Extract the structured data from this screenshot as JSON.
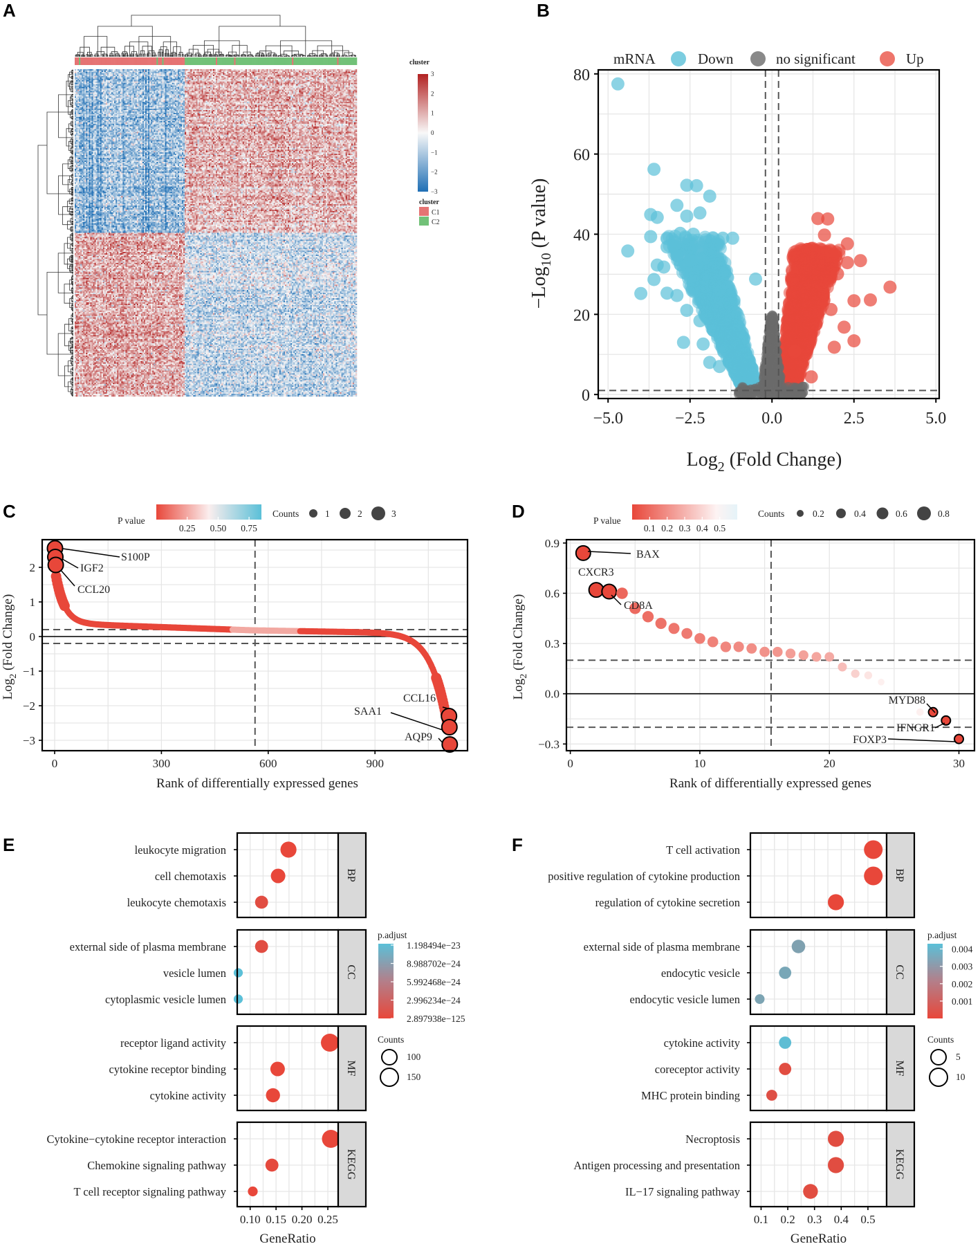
{
  "panels": {
    "A": {
      "label": "A"
    },
    "B": {
      "label": "B"
    },
    "C": {
      "label": "C"
    },
    "D": {
      "label": "D"
    },
    "E": {
      "label": "E"
    },
    "F": {
      "label": "F"
    }
  },
  "colors": {
    "down": "#5bc0d8",
    "up": "#e8473a",
    "ns": "#6b6b6b",
    "heat_low": "#2a74b9",
    "heat_mid": "#f8f8f8",
    "heat_high": "#c0392b",
    "cluster_c1": "#e57373",
    "cluster_c2": "#72c178",
    "pcolor_low": "#e8473a",
    "pcolor_high": "#5bc0d8"
  },
  "chart_data": [
    {
      "panel": "A",
      "type": "heatmap",
      "title": "",
      "annotation_title": "cluster",
      "color_scale": {
        "min": -3,
        "max": 3,
        "ticks": [
          "3",
          "2",
          "1",
          "0",
          "−1",
          "−2",
          "−3"
        ]
      },
      "legend": {
        "title": "cluster",
        "entries": [
          "C1",
          "C2"
        ]
      },
      "columns": {
        "count": 200,
        "c1_fraction": 0.39
      },
      "rows": {
        "count": 240,
        "up_in_c2_fraction": 0.5
      }
    },
    {
      "panel": "B",
      "type": "scatter",
      "title": "mRNA",
      "xlabel": "Log2 (Fold Change)",
      "ylabel": "−Log10 (P value)",
      "xlabel_main": "Log",
      "xlabel_sub": "2",
      "xlabel_rest": " (Fold Change)",
      "ylabel_main": "−Log",
      "ylabel_sub": "10",
      "ylabel_rest": " (P value)",
      "xlim": [
        -5.3,
        5.1
      ],
      "ylim": [
        -1,
        81
      ],
      "xticks": [
        "−5.0",
        "−2.5",
        "0.0",
        "2.5",
        "5.0"
      ],
      "xtick_values": [
        -5,
        -2.5,
        0,
        2.5,
        5
      ],
      "yticks": [
        "0",
        "20",
        "40",
        "60",
        "80"
      ],
      "ytick_values": [
        0,
        20,
        40,
        60,
        80
      ],
      "thresholds": {
        "logfc": [
          -0.2,
          0.2
        ],
        "neglog10p": 1
      },
      "legend": [
        "Down",
        "no significant",
        "Up"
      ],
      "series": [
        {
          "name": "Down",
          "points": [
            [
              -4.7,
              77.5
            ],
            [
              -3.6,
              56.2
            ],
            [
              -3.7,
              44.9
            ],
            [
              -3.5,
              44.2
            ],
            [
              -3.7,
              39.4
            ],
            [
              -4.4,
              35.8
            ],
            [
              -3.5,
              32.3
            ],
            [
              -3.3,
              31.8
            ],
            [
              -3.6,
              28.7
            ],
            [
              -3.2,
              25.3
            ],
            [
              -4.0,
              25.2
            ],
            [
              -2.6,
              52.2
            ],
            [
              -2.3,
              52.1
            ],
            [
              -1.9,
              49.5
            ],
            [
              -2.9,
              47.2
            ],
            [
              -2.2,
              45.3
            ],
            [
              -2.6,
              44.5
            ],
            [
              -2.8,
              40.2
            ],
            [
              -2.4,
              40.0
            ],
            [
              -1.5,
              39.0
            ],
            [
              -1.2,
              39.0
            ],
            [
              -3.0,
              37.1
            ],
            [
              -3.2,
              36.8
            ],
            [
              -2.5,
              33.4
            ],
            [
              -0.5,
              28.8
            ],
            [
              -2.9,
              24.7
            ],
            [
              -2.6,
              21.0
            ],
            [
              -2.2,
              18.4
            ],
            [
              -2.7,
              13.0
            ],
            [
              -2.1,
              12.6
            ],
            [
              -1.9,
              8.0
            ],
            [
              -1.6,
              7.0
            ]
          ]
        },
        {
          "name": "Up",
          "points": [
            [
              3.6,
              26.8
            ],
            [
              3.0,
              23.6
            ],
            [
              2.5,
              23.4
            ],
            [
              2.7,
              33.4
            ],
            [
              2.3,
              32.9
            ],
            [
              1.7,
              43.8
            ],
            [
              1.4,
              43.9
            ],
            [
              1.6,
              39.8
            ],
            [
              2.3,
              37.6
            ],
            [
              1.8,
              35.8
            ],
            [
              2.0,
              30.1
            ],
            [
              2.5,
              13.4
            ],
            [
              2.2,
              16.8
            ],
            [
              1.8,
              21.2
            ],
            [
              1.2,
              4.4
            ],
            [
              0.7,
              10.8
            ],
            [
              1.9,
              11.8
            ]
          ]
        }
      ]
    },
    {
      "panel": "C",
      "type": "scatter",
      "xlabel": "Rank of differentially expressed genes",
      "ylabel": "Log2 (Fold Change)",
      "ylabel_main": "Log",
      "ylabel_sub": "2",
      "ylabel_rest": " (Fold Change)",
      "xlim": [
        -35,
        1160
      ],
      "ylim": [
        -3.3,
        2.8
      ],
      "xticks": [
        "0",
        "300",
        "600",
        "900"
      ],
      "xtick_values": [
        0,
        300,
        600,
        900
      ],
      "yticks": [
        "2",
        "1",
        "0",
        "−1",
        "−2",
        "−3"
      ],
      "ytick_values": [
        2,
        1,
        0,
        -1,
        -2,
        -3
      ],
      "vline": 563,
      "hlines_dashed": [
        0.2,
        -0.2
      ],
      "hline_solid": 0,
      "n_genes": 1110,
      "legend": {
        "pvalue_title": "P value",
        "pvalue_ticks": [
          "0.25",
          "0.50",
          "0.75"
        ],
        "pvalue_tick_values": [
          0.25,
          0.5,
          0.75
        ],
        "pvalue_range": [
          0,
          0.85
        ],
        "counts_title": "Counts",
        "counts": [
          "1",
          "2",
          "3"
        ]
      },
      "labels": [
        {
          "name": "S100P",
          "x": 1,
          "y": 2.55
        },
        {
          "name": "IGF2",
          "x": 2,
          "y": 2.3
        },
        {
          "name": "CCL20",
          "x": 3,
          "y": 2.07
        },
        {
          "name": "CCL16",
          "x": 1108,
          "y": -2.3
        },
        {
          "name": "SAA1",
          "x": 1109,
          "y": -2.62
        },
        {
          "name": "AQP9",
          "x": 1110,
          "y": -3.12
        }
      ]
    },
    {
      "panel": "D",
      "type": "scatter",
      "xlabel": "Rank of differentially expressed genes",
      "ylabel": "Log2 (Fold Change)",
      "ylabel_main": "Log",
      "ylabel_sub": "2",
      "ylabel_rest": " (Fold Change)",
      "xlim": [
        -0.3,
        31.2
      ],
      "ylim": [
        -0.34,
        0.92
      ],
      "xticks": [
        "0",
        "10",
        "20",
        "30"
      ],
      "xtick_values": [
        0,
        10,
        20,
        30
      ],
      "yticks": [
        "0.9",
        "0.6",
        "0.3",
        "0.0",
        "−0.3"
      ],
      "ytick_values": [
        0.9,
        0.6,
        0.3,
        0.0,
        -0.3
      ],
      "vline": 15.5,
      "hlines_dashed": [
        0.2,
        -0.2
      ],
      "hline_solid": 0,
      "legend": {
        "pvalue_title": "P value",
        "pvalue_ticks": [
          "0.1",
          "0.2",
          "0.3",
          "0.4",
          "0.5"
        ],
        "pvalue_tick_values": [
          0.1,
          0.2,
          0.3,
          0.4,
          0.5
        ],
        "pvalue_range": [
          0,
          0.6
        ],
        "counts_title": "Counts",
        "counts": [
          "0.2",
          "0.4",
          "0.6",
          "0.8"
        ]
      },
      "points": [
        {
          "rank": 1,
          "logfc": 0.84,
          "p": 0.01,
          "label": "BAX"
        },
        {
          "rank": 2,
          "logfc": 0.62,
          "p": 0.02,
          "label": "CXCR3"
        },
        {
          "rank": 3,
          "logfc": 0.61,
          "p": 0.03,
          "label": "CD8A"
        },
        {
          "rank": 4,
          "logfc": 0.6,
          "p": 0.08
        },
        {
          "rank": 5,
          "logfc": 0.51,
          "p": 0.09
        },
        {
          "rank": 6,
          "logfc": 0.46,
          "p": 0.1
        },
        {
          "rank": 7,
          "logfc": 0.42,
          "p": 0.11
        },
        {
          "rank": 8,
          "logfc": 0.39,
          "p": 0.12
        },
        {
          "rank": 9,
          "logfc": 0.36,
          "p": 0.13
        },
        {
          "rank": 10,
          "logfc": 0.33,
          "p": 0.14
        },
        {
          "rank": 11,
          "logfc": 0.31,
          "p": 0.15
        },
        {
          "rank": 12,
          "logfc": 0.28,
          "p": 0.16
        },
        {
          "rank": 13,
          "logfc": 0.28,
          "p": 0.17
        },
        {
          "rank": 14,
          "logfc": 0.27,
          "p": 0.18
        },
        {
          "rank": 15,
          "logfc": 0.25,
          "p": 0.19
        },
        {
          "rank": 16,
          "logfc": 0.25,
          "p": 0.2
        },
        {
          "rank": 17,
          "logfc": 0.24,
          "p": 0.22
        },
        {
          "rank": 18,
          "logfc": 0.23,
          "p": 0.23
        },
        {
          "rank": 19,
          "logfc": 0.22,
          "p": 0.24
        },
        {
          "rank": 20,
          "logfc": 0.22,
          "p": 0.25
        },
        {
          "rank": 21,
          "logfc": 0.16,
          "p": 0.3
        },
        {
          "rank": 22,
          "logfc": 0.12,
          "p": 0.35
        },
        {
          "rank": 23,
          "logfc": 0.11,
          "p": 0.4
        },
        {
          "rank": 24,
          "logfc": 0.07,
          "p": 0.5
        },
        {
          "rank": 27,
          "logfc": -0.11,
          "p": 0.45
        },
        {
          "rank": 28,
          "logfc": -0.11,
          "p": 0.05,
          "label": "MYD88"
        },
        {
          "rank": 29,
          "logfc": -0.16,
          "p": 0.06,
          "label": "IFNGR1"
        },
        {
          "rank": 30,
          "logfc": -0.27,
          "p": 0.01,
          "label": "FOXP3"
        }
      ]
    },
    {
      "panel": "E",
      "type": "scatter",
      "subtype": "dotplot",
      "xlabel": "GeneRatio",
      "xlim": [
        0.075,
        0.27
      ],
      "xticks": [
        "0.10",
        "0.15",
        "0.20",
        "0.25"
      ],
      "xtick_values": [
        0.1,
        0.15,
        0.2,
        0.25
      ],
      "legend": {
        "color_title": "p.adjust",
        "color_ticks": [
          "1.198494e−23",
          "8.988702e−24",
          "5.992468e−24",
          "2.996234e−24",
          "2.897938e−125"
        ],
        "size_title": "Counts",
        "size_ticks": [
          "100",
          "150"
        ]
      },
      "facets": [
        {
          "name": "BP",
          "terms": [
            {
              "term": "leukocyte migration",
              "ratio": 0.174,
              "count": 150,
              "p": 0.0
            },
            {
              "term": "cell chemotaxis",
              "ratio": 0.154,
              "count": 130,
              "p": 0.0
            },
            {
              "term": "leukocyte chemotaxis",
              "ratio": 0.122,
              "count": 110,
              "p": 0.05
            }
          ]
        },
        {
          "name": "CC",
          "terms": [
            {
              "term": "external side of plasma membrane",
              "ratio": 0.122,
              "count": 110,
              "p": 0.05
            },
            {
              "term": "vesicle lumen",
              "ratio": 0.077,
              "count": 60,
              "p": 1.0
            },
            {
              "term": "cytoplasmic vesicle lumen",
              "ratio": 0.077,
              "count": 60,
              "p": 1.0
            }
          ]
        },
        {
          "name": "MF",
          "terms": [
            {
              "term": "receptor ligand activity",
              "ratio": 0.254,
              "count": 175,
              "p": 0.0
            },
            {
              "term": "cytokine receptor binding",
              "ratio": 0.153,
              "count": 130,
              "p": 0.0
            },
            {
              "term": "cytokine activity",
              "ratio": 0.144,
              "count": 125,
              "p": 0.0
            }
          ]
        },
        {
          "name": "KEGG",
          "terms": [
            {
              "term": "Cytokine−cytokine receptor interaction",
              "ratio": 0.256,
              "count": 175,
              "p": 0.0
            },
            {
              "term": "Chemokine signaling pathway",
              "ratio": 0.142,
              "count": 110,
              "p": 0.02
            },
            {
              "term": "T cell receptor signaling pathway",
              "ratio": 0.105,
              "count": 70,
              "p": 0.0
            }
          ]
        }
      ]
    },
    {
      "panel": "F",
      "type": "scatter",
      "subtype": "dotplot",
      "xlabel": "GeneRatio",
      "xlim": [
        0.06,
        0.57
      ],
      "xticks": [
        "0.1",
        "0.2",
        "0.3",
        "0.4",
        "0.5"
      ],
      "xtick_values": [
        0.1,
        0.2,
        0.3,
        0.4,
        0.5
      ],
      "legend": {
        "color_title": "p.adjust",
        "color_ticks": [
          "0.004",
          "0.003",
          "0.002",
          "0.001"
        ],
        "color_tick_values": [
          0.004,
          0.003,
          0.002,
          0.001
        ],
        "color_range": [
          0.0,
          0.0043
        ],
        "size_title": "Counts",
        "size_ticks": [
          "5",
          "10"
        ]
      },
      "facets": [
        {
          "name": "BP",
          "terms": [
            {
              "term": "T cell activation",
              "ratio": 0.52,
              "count": 11,
              "p": 0.0
            },
            {
              "term": "positive regulation of cytokine production",
              "ratio": 0.52,
              "count": 11,
              "p": 0.0
            },
            {
              "term": "regulation of cytokine secretion",
              "ratio": 0.38,
              "count": 9,
              "p": 0.0
            }
          ]
        },
        {
          "name": "CC",
          "terms": [
            {
              "term": "external side of plasma membrane",
              "ratio": 0.24,
              "count": 7,
              "p": 0.0032
            },
            {
              "term": "endocytic vesicle",
              "ratio": 0.19,
              "count": 6,
              "p": 0.0034
            },
            {
              "term": "endocytic vesicle lumen",
              "ratio": 0.095,
              "count": 4,
              "p": 0.0033
            }
          ]
        },
        {
          "name": "MF",
          "terms": [
            {
              "term": "cytokine activity",
              "ratio": 0.19,
              "count": 6,
              "p": 0.0042
            },
            {
              "term": "coreceptor activity",
              "ratio": 0.19,
              "count": 6,
              "p": 0.0002
            },
            {
              "term": "MHC protein binding",
              "ratio": 0.14,
              "count": 5,
              "p": 0.0003
            }
          ]
        },
        {
          "name": "KEGG",
          "terms": [
            {
              "term": "Necroptosis",
              "ratio": 0.38,
              "count": 9,
              "p": 0.0002
            },
            {
              "term": "Antigen processing and presentation",
              "ratio": 0.38,
              "count": 9,
              "p": 0.0002
            },
            {
              "term": "IL−17 signaling pathway",
              "ratio": 0.285,
              "count": 8,
              "p": 0.0002
            }
          ]
        }
      ]
    }
  ]
}
